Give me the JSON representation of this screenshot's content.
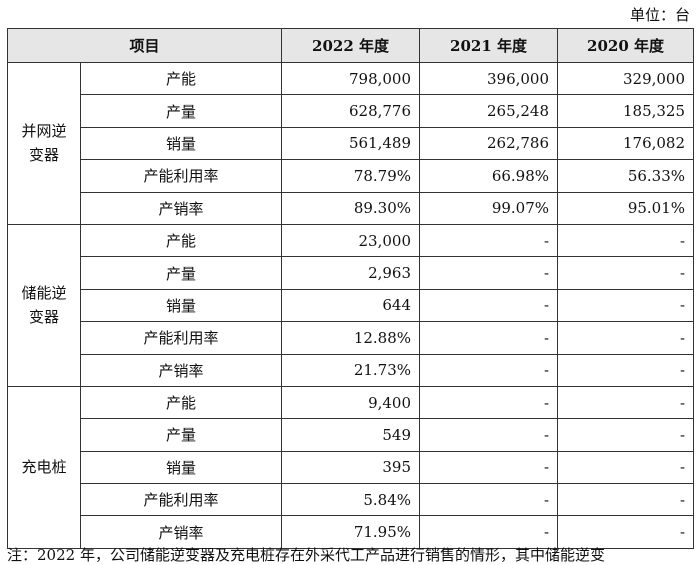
{
  "unit_label": "单位：台",
  "header": {
    "item": "项目",
    "y2022": "2022 年度",
    "y2021": "2021 年度",
    "y2020": "2020 年度"
  },
  "groups": [
    {
      "name": "并网逆变器",
      "rows": [
        {
          "label": "产能",
          "y2022": "798,000",
          "y2021": "396,000",
          "y2020": "329,000"
        },
        {
          "label": "产量",
          "y2022": "628,776",
          "y2021": "265,248",
          "y2020": "185,325"
        },
        {
          "label": "销量",
          "y2022": "561,489",
          "y2021": "262,786",
          "y2020": "176,082"
        },
        {
          "label": "产能利用率",
          "y2022": "78.79%",
          "y2021": "66.98%",
          "y2020": "56.33%"
        },
        {
          "label": "产销率",
          "y2022": "89.30%",
          "y2021": "99.07%",
          "y2020": "95.01%"
        }
      ]
    },
    {
      "name": "储能逆变器",
      "rows": [
        {
          "label": "产能",
          "y2022": "23,000",
          "y2021": "-",
          "y2020": "-"
        },
        {
          "label": "产量",
          "y2022": "2,963",
          "y2021": "-",
          "y2020": "-"
        },
        {
          "label": "销量",
          "y2022": "644",
          "y2021": "-",
          "y2020": "-"
        },
        {
          "label": "产能利用率",
          "y2022": "12.88%",
          "y2021": "-",
          "y2020": "-"
        },
        {
          "label": "产销率",
          "y2022": "21.73%",
          "y2021": "-",
          "y2020": "-"
        }
      ]
    },
    {
      "name": "充电桩",
      "rows": [
        {
          "label": "产能",
          "y2022": "9,400",
          "y2021": "-",
          "y2020": "-"
        },
        {
          "label": "产量",
          "y2022": "549",
          "y2021": "-",
          "y2020": "-"
        },
        {
          "label": "销量",
          "y2022": "395",
          "y2021": "-",
          "y2020": "-"
        },
        {
          "label": "产能利用率",
          "y2022": "5.84%",
          "y2021": "-",
          "y2020": "-"
        },
        {
          "label": "产销率",
          "y2022": "71.95%",
          "y2021": "-",
          "y2020": "-"
        }
      ]
    }
  ],
  "footnote": "注：2022 年，公司储能逆变器及充电桩存在外采代工产品进行销售的情形，其中储能逆变"
}
